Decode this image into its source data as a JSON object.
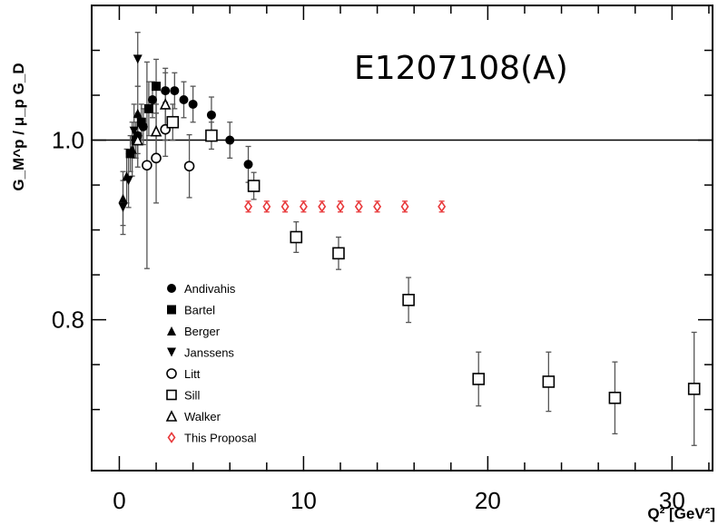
{
  "chart_data": {
    "type": "scatter",
    "title": "E1207108(A)",
    "xlabel": "Q² [GeV²]",
    "ylabel": "G_M^p / μ_p G_D",
    "xlim": [
      -1.5,
      32.2
    ],
    "ylim": [
      0.632,
      1.15
    ],
    "xticks": [
      0,
      10,
      20,
      30
    ],
    "yticks": [
      0.8,
      1.0
    ],
    "reference_line": 1.0,
    "legend_position": "lower-left",
    "series": [
      {
        "name": "Andivahis",
        "marker": "filled-circle",
        "color": "#000000",
        "points": [
          {
            "x": 1.0,
            "y": 1.005,
            "err": 0.02
          },
          {
            "x": 1.3,
            "y": 1.015,
            "err": 0.02
          },
          {
            "x": 1.8,
            "y": 1.045,
            "err": 0.02
          },
          {
            "x": 2.5,
            "y": 1.055,
            "err": 0.02
          },
          {
            "x": 3.0,
            "y": 1.055,
            "err": 0.02
          },
          {
            "x": 3.5,
            "y": 1.045,
            "err": 0.02
          },
          {
            "x": 4.0,
            "y": 1.04,
            "err": 0.02
          },
          {
            "x": 5.0,
            "y": 1.028,
            "err": 0.02
          },
          {
            "x": 6.0,
            "y": 1.0,
            "err": 0.02
          },
          {
            "x": 7.0,
            "y": 0.973,
            "err": 0.02
          }
        ]
      },
      {
        "name": "Bartel",
        "marker": "filled-square",
        "color": "#000000",
        "points": [
          {
            "x": 0.6,
            "y": 0.985,
            "err": 0.02
          },
          {
            "x": 0.9,
            "y": 1.0,
            "err": 0.02
          },
          {
            "x": 1.2,
            "y": 1.02,
            "err": 0.02
          },
          {
            "x": 1.6,
            "y": 1.035,
            "err": 0.03
          },
          {
            "x": 2.0,
            "y": 1.06,
            "err": 0.03
          }
        ]
      },
      {
        "name": "Berger",
        "marker": "filled-triangle-up",
        "color": "#000000",
        "points": [
          {
            "x": 0.2,
            "y": 0.935,
            "err": 0.03
          },
          {
            "x": 0.4,
            "y": 0.96,
            "err": 0.03
          },
          {
            "x": 0.7,
            "y": 0.99,
            "err": 0.03
          },
          {
            "x": 1.0,
            "y": 1.03,
            "err": 0.03
          }
        ]
      },
      {
        "name": "Janssens",
        "marker": "filled-triangle-down",
        "color": "#000000",
        "points": [
          {
            "x": 0.2,
            "y": 0.925,
            "err": 0.03
          },
          {
            "x": 0.5,
            "y": 0.955,
            "err": 0.03
          },
          {
            "x": 0.8,
            "y": 1.01,
            "err": 0.03
          },
          {
            "x": 1.0,
            "y": 1.09,
            "err": 0.03
          }
        ]
      },
      {
        "name": "Litt",
        "marker": "open-circle",
        "color": "#000000",
        "points": [
          {
            "x": 1.5,
            "y": 0.972,
            "err": 0.115
          },
          {
            "x": 2.0,
            "y": 0.98,
            "err": 0.05
          },
          {
            "x": 2.5,
            "y": 1.012,
            "err": 0.03
          },
          {
            "x": 3.8,
            "y": 0.971,
            "err": 0.035
          }
        ]
      },
      {
        "name": "Sill",
        "marker": "open-square",
        "color": "#000000",
        "points": [
          {
            "x": 2.9,
            "y": 1.02,
            "err": 0.02
          },
          {
            "x": 5.0,
            "y": 1.005,
            "err": 0.015
          },
          {
            "x": 7.3,
            "y": 0.949,
            "err": 0.015
          },
          {
            "x": 9.6,
            "y": 0.892,
            "err": 0.017
          },
          {
            "x": 11.9,
            "y": 0.874,
            "err": 0.018
          },
          {
            "x": 15.7,
            "y": 0.822,
            "err": 0.025
          },
          {
            "x": 19.5,
            "y": 0.734,
            "err": 0.03
          },
          {
            "x": 23.3,
            "y": 0.731,
            "err": 0.033
          },
          {
            "x": 26.9,
            "y": 0.713,
            "err": 0.04
          },
          {
            "x": 31.2,
            "y": 0.723,
            "err": 0.063
          }
        ]
      },
      {
        "name": "Walker",
        "marker": "open-triangle-up",
        "color": "#000000",
        "points": [
          {
            "x": 1.0,
            "y": 1.0,
            "err": 0.03
          },
          {
            "x": 2.0,
            "y": 1.01,
            "err": 0.03
          },
          {
            "x": 2.5,
            "y": 1.04,
            "err": 0.04
          }
        ]
      },
      {
        "name": "This Proposal",
        "marker": "open-diamond",
        "color": "#e8383a",
        "points": [
          {
            "x": 7.0,
            "y": 0.926,
            "err": 0.006
          },
          {
            "x": 8.0,
            "y": 0.926,
            "err": 0.006
          },
          {
            "x": 9.0,
            "y": 0.926,
            "err": 0.006
          },
          {
            "x": 10.0,
            "y": 0.926,
            "err": 0.006
          },
          {
            "x": 11.0,
            "y": 0.926,
            "err": 0.006
          },
          {
            "x": 12.0,
            "y": 0.926,
            "err": 0.006
          },
          {
            "x": 13.0,
            "y": 0.926,
            "err": 0.006
          },
          {
            "x": 14.0,
            "y": 0.926,
            "err": 0.006
          },
          {
            "x": 15.5,
            "y": 0.926,
            "err": 0.006
          },
          {
            "x": 17.5,
            "y": 0.926,
            "err": 0.006
          }
        ]
      }
    ]
  }
}
